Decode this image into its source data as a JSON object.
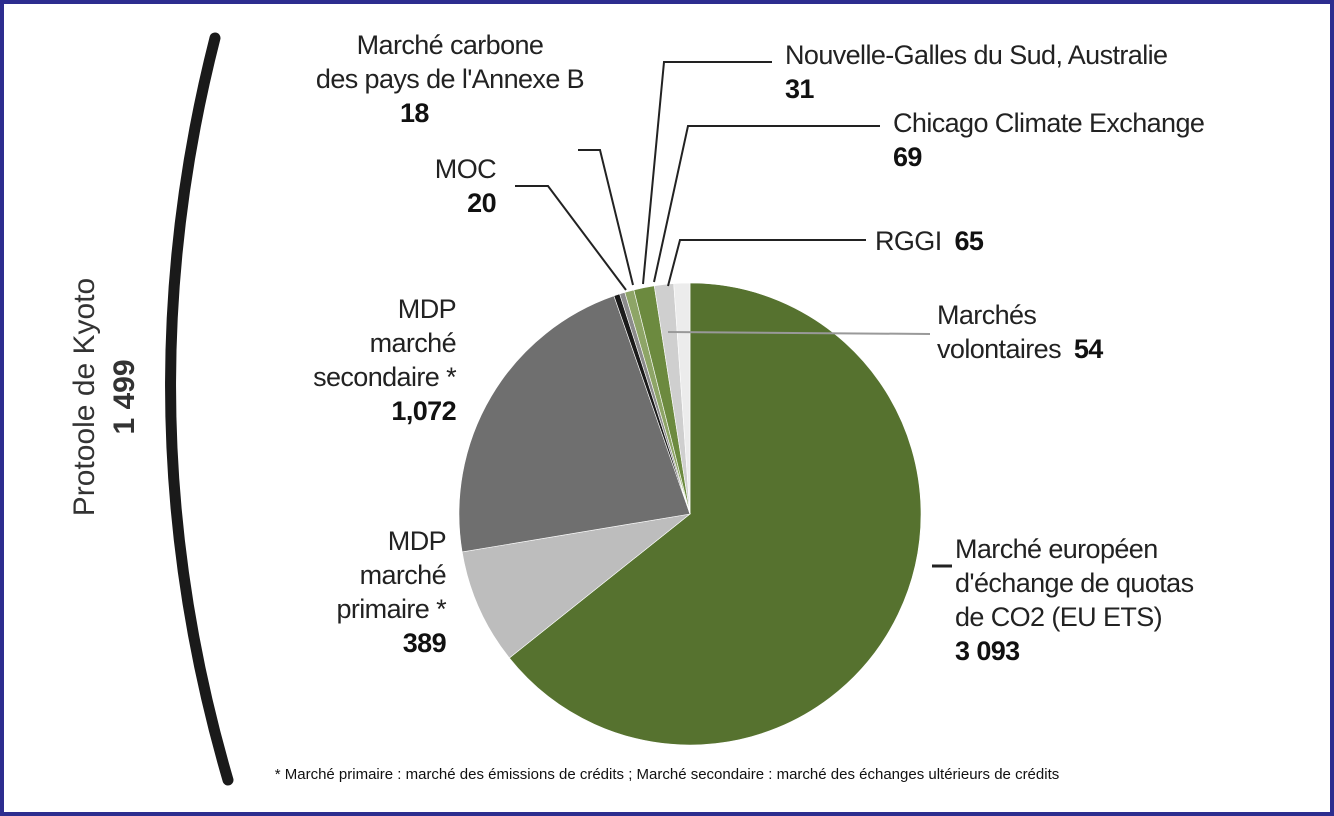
{
  "chart_data": {
    "type": "pie",
    "categories": [
      "Marché européen\nd'échange de quotas\nde CO2 (EU ETS)",
      "MDP\nmarché\nprimaire *",
      "MDP\nmarché\nsecondaire *",
      "MOC",
      "Marché carbone\ndes pays de l'Annexe B",
      "Nouvelle-Galles du Sud, Australie",
      "Chicago Climate Exchange",
      "RGGI",
      "Marchés\nvolontaires"
    ],
    "values": [
      3093,
      389,
      1072,
      20,
      18,
      31,
      69,
      65,
      54
    ],
    "value_labels": [
      "3 093",
      "389",
      "1,072",
      "20",
      "18",
      "31",
      "69",
      "65",
      "54"
    ],
    "colors": [
      "#56722f",
      "#bdbdbd",
      "#6f6f6f",
      "#1a1a1a",
      "#8c8c8c",
      "#8ea567",
      "#6c8a3f",
      "#cfcfcf",
      "#ececec"
    ],
    "annotation": {
      "text": "Protoole de Kyoto",
      "value": 1499,
      "value_label": "1 499"
    },
    "footnote": "* Marché primaire : marché des émissions de crédits ; Marché secondaire : marché des échanges ultérieurs de crédits"
  }
}
